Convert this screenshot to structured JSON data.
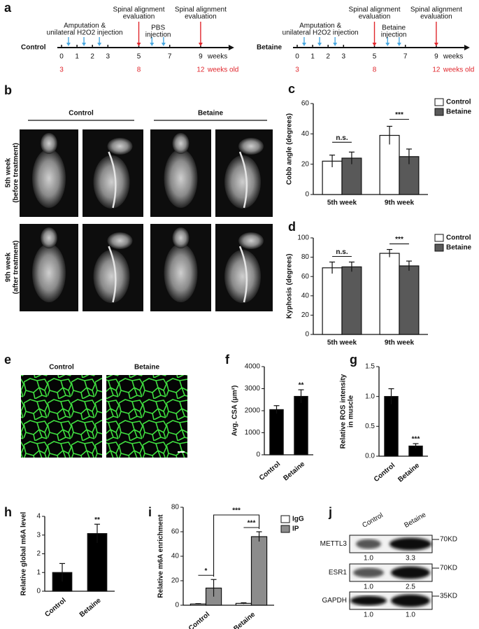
{
  "figure_labels": [
    "a",
    "b",
    "c",
    "d",
    "e",
    "f",
    "g",
    "h",
    "i",
    "j"
  ],
  "timelines": [
    {
      "group": "Control",
      "weeks": [
        0,
        1,
        2,
        3,
        5,
        7,
        9
      ],
      "week_unit": "weeks",
      "ages": [
        3,
        8,
        12
      ],
      "age_unit": "weeks old",
      "evaluation": [
        "Spinal alignment",
        "evaluation"
      ],
      "amputation": [
        "Amputation &",
        "unilateral H2O2 injection"
      ],
      "treatment": [
        "PBS",
        "injection"
      ]
    },
    {
      "group": "Betaine",
      "weeks": [
        0,
        1,
        2,
        3,
        5,
        7,
        9
      ],
      "week_unit": "weeks",
      "ages": [
        3,
        8,
        12
      ],
      "age_unit": "weeks old",
      "evaluation": [
        "Spinal alignment",
        "evaluation"
      ],
      "amputation": [
        "Amputation &",
        "unilateral H2O2 injection"
      ],
      "treatment": [
        "Betaine",
        "injection"
      ]
    }
  ],
  "xray": {
    "columns": [
      "Control",
      "Betaine"
    ],
    "rows": [
      [
        "5th week",
        "(before treatment)"
      ],
      [
        "9th week",
        "(after treatment)"
      ]
    ]
  },
  "staining": {
    "columns": [
      "Control",
      "Betaine"
    ]
  },
  "blot": {
    "columns": [
      "Control",
      "Betaine"
    ],
    "rows": [
      {
        "protein": "METTL3",
        "size": "70KD",
        "levels": [
          "1.0",
          "3.3"
        ]
      },
      {
        "protein": "ESR1",
        "size": "70KD",
        "levels": [
          "1.0",
          "2.5"
        ]
      },
      {
        "protein": "GAPDH",
        "size": "35KD",
        "levels": [
          "1.0",
          "1.0"
        ]
      }
    ]
  },
  "chart_data": [
    {
      "type": "bar",
      "ylabel": "Cobb angle (degrees)",
      "categories": [
        "5th week",
        "9th week"
      ],
      "series": [
        {
          "name": "Control",
          "color": "#ffffff",
          "values": [
            22,
            39
          ],
          "errors": [
            4,
            6
          ]
        },
        {
          "name": "Betaine",
          "color": "#595959",
          "values": [
            24,
            25
          ],
          "errors": [
            4,
            5
          ]
        }
      ],
      "ylim": [
        0,
        60
      ],
      "yticks": [
        0,
        20,
        40,
        60
      ],
      "legend": "upper right",
      "annotations": [
        "n.s.",
        "***"
      ]
    },
    {
      "type": "bar",
      "ylabel": "Kyphosis (degrees)",
      "categories": [
        "5th week",
        "9th week"
      ],
      "series": [
        {
          "name": "Control",
          "color": "#ffffff",
          "values": [
            69,
            84
          ],
          "errors": [
            6,
            4
          ]
        },
        {
          "name": "Betaine",
          "color": "#595959",
          "values": [
            70,
            71
          ],
          "errors": [
            5,
            5
          ]
        }
      ],
      "ylim": [
        0,
        100
      ],
      "yticks": [
        0,
        20,
        40,
        60,
        80,
        100
      ],
      "legend": "upper right",
      "annotations": [
        "n.s.",
        "***"
      ]
    },
    {
      "type": "bar",
      "ylabel": "Avg. CSA (μm²)",
      "categories": [
        "Control",
        "Betaine"
      ],
      "color": "#000000",
      "values": [
        2050,
        2650
      ],
      "errors": [
        180,
        300
      ],
      "ylim": [
        0,
        4000
      ],
      "yticks": [
        0,
        1000,
        2000,
        3000,
        4000
      ],
      "annotations": [
        "**"
      ]
    },
    {
      "type": "bar",
      "ylabel": [
        "Relative ROS intensity",
        "in muscle"
      ],
      "categories": [
        "Control",
        "Betaine"
      ],
      "color": "#000000",
      "values": [
        1.0,
        0.17
      ],
      "errors": [
        0.13,
        0.04
      ],
      "ylim": [
        0,
        1.5
      ],
      "yticks": [
        {
          "value": 0,
          "label": "0.0"
        },
        {
          "value": 0.5,
          "label": "0.5"
        },
        {
          "value": 1,
          "label": "1.0"
        },
        {
          "value": 1.5,
          "label": "1.5"
        }
      ],
      "annotations": [
        "***"
      ]
    },
    {
      "type": "bar",
      "ylabel": "Relative global m6A level",
      "categories": [
        "Control",
        "Betaine"
      ],
      "color": "#000000",
      "values": [
        1.0,
        3.08
      ],
      "errors": [
        0.48,
        0.5
      ],
      "ylim": [
        0,
        4
      ],
      "yticks": [
        0,
        1,
        2,
        3,
        4
      ],
      "annotations": [
        "**"
      ]
    },
    {
      "type": "bar",
      "ylabel": "Relative m6A enrichment",
      "categories": [
        "Control",
        "Betaine"
      ],
      "series": [
        {
          "name": "IgG",
          "color": "#ffffff",
          "values": [
            1,
            1.5
          ],
          "errors": [
            0.3,
            0.5
          ]
        },
        {
          "name": "IP",
          "color": "#8c8c8c",
          "values": [
            14,
            56
          ],
          "errors": [
            7,
            4
          ]
        }
      ],
      "ylim": [
        0,
        80
      ],
      "yticks": [
        0,
        20,
        40,
        60,
        80
      ],
      "legend": "upper right",
      "annotations": [
        "*",
        "***",
        "***"
      ]
    }
  ]
}
